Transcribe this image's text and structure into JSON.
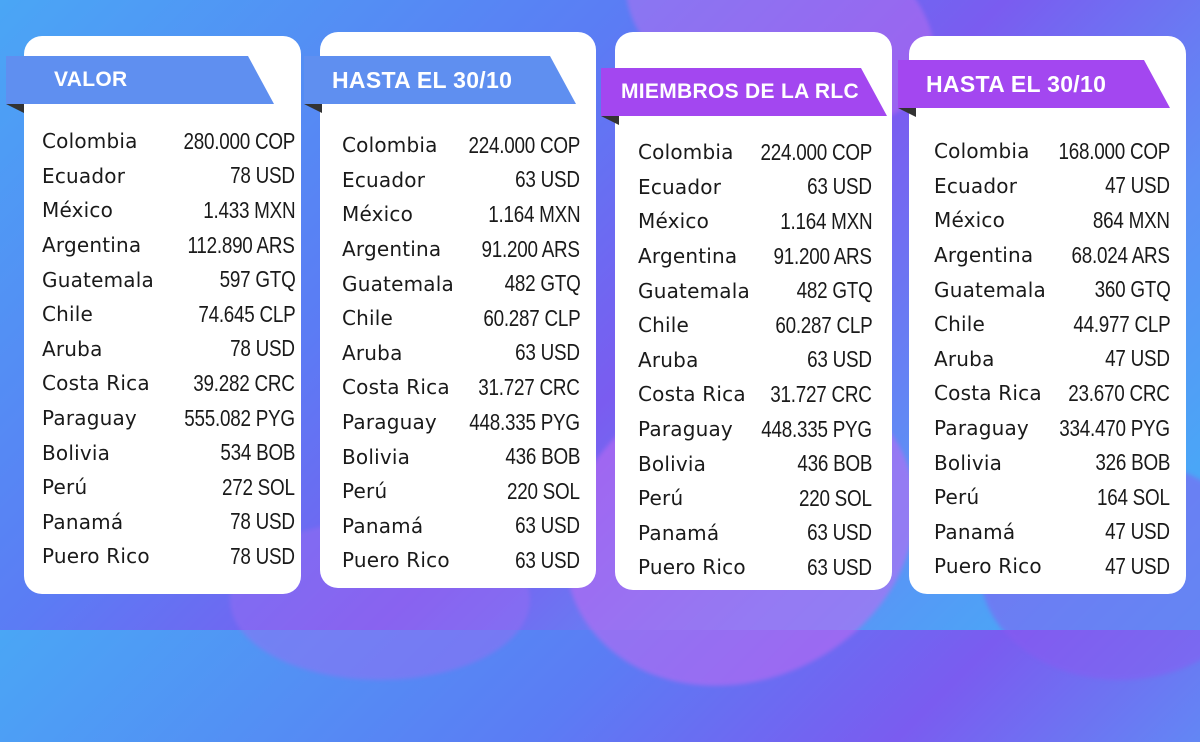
{
  "cards": [
    {
      "header": "VALOR",
      "header_color": "#5f8ff0",
      "rows": [
        {
          "country": "Colombia",
          "price": "280.000 COP"
        },
        {
          "country": "Ecuador",
          "price": "78 USD"
        },
        {
          "country": "México",
          "price": "1.433 MXN"
        },
        {
          "country": "Argentina",
          "price": "112.890 ARS"
        },
        {
          "country": "Guatemala",
          "price": "597 GTQ"
        },
        {
          "country": "Chile",
          "price": "74.645 CLP"
        },
        {
          "country": "Aruba",
          "price": "78 USD"
        },
        {
          "country": "Costa Rica",
          "price": "39.282 CRC"
        },
        {
          "country": "Paraguay",
          "price": "555.082 PYG"
        },
        {
          "country": "Bolivia",
          "price": "534 BOB"
        },
        {
          "country": "Perú",
          "price": "272 SOL"
        },
        {
          "country": "Panamá",
          "price": "78 USD"
        },
        {
          "country": "Puero Rico",
          "price": "78 USD"
        }
      ]
    },
    {
      "header": "HASTA EL 30/10",
      "header_color": "#5f8ff0",
      "rows": [
        {
          "country": "Colombia",
          "price": "224.000 COP"
        },
        {
          "country": "Ecuador",
          "price": "63 USD"
        },
        {
          "country": "México",
          "price": "1.164 MXN"
        },
        {
          "country": "Argentina",
          "price": "91.200 ARS"
        },
        {
          "country": "Guatemala",
          "price": "482 GTQ"
        },
        {
          "country": "Chile",
          "price": "60.287 CLP"
        },
        {
          "country": "Aruba",
          "price": "63 USD"
        },
        {
          "country": "Costa Rica",
          "price": "31.727 CRC"
        },
        {
          "country": "Paraguay",
          "price": "448.335 PYG"
        },
        {
          "country": "Bolivia",
          "price": "436 BOB"
        },
        {
          "country": "Perú",
          "price": "220 SOL"
        },
        {
          "country": "Panamá",
          "price": "63 USD"
        },
        {
          "country": "Puero Rico",
          "price": "63 USD"
        }
      ]
    },
    {
      "header": "MIEMBROS DE LA RLC",
      "header_color": "#a347f0",
      "rows": [
        {
          "country": "Colombia",
          "price": "224.000 COP"
        },
        {
          "country": "Ecuador",
          "price": "63 USD"
        },
        {
          "country": "México",
          "price": "1.164 MXN"
        },
        {
          "country": "Argentina",
          "price": "91.200 ARS"
        },
        {
          "country": "Guatemala",
          "price": "482 GTQ"
        },
        {
          "country": "Chile",
          "price": "60.287 CLP"
        },
        {
          "country": "Aruba",
          "price": "63 USD"
        },
        {
          "country": "Costa Rica",
          "price": "31.727 CRC"
        },
        {
          "country": "Paraguay",
          "price": "448.335 PYG"
        },
        {
          "country": "Bolivia",
          "price": "436 BOB"
        },
        {
          "country": "Perú",
          "price": "220 SOL"
        },
        {
          "country": "Panamá",
          "price": "63 USD"
        },
        {
          "country": "Puero Rico",
          "price": "63 USD"
        }
      ]
    },
    {
      "header": "HASTA EL 30/10",
      "header_color": "#a347f0",
      "rows": [
        {
          "country": "Colombia",
          "price": "168.000 COP"
        },
        {
          "country": "Ecuador",
          "price": "47 USD"
        },
        {
          "country": "México",
          "price": "864 MXN"
        },
        {
          "country": "Argentina",
          "price": "68.024 ARS"
        },
        {
          "country": "Guatemala",
          "price": "360 GTQ"
        },
        {
          "country": "Chile",
          "price": "44.977 CLP"
        },
        {
          "country": "Aruba",
          "price": "47 USD"
        },
        {
          "country": "Costa Rica",
          "price": "23.670 CRC"
        },
        {
          "country": "Paraguay",
          "price": "334.470 PYG"
        },
        {
          "country": "Bolivia",
          "price": "326 BOB"
        },
        {
          "country": "Perú",
          "price": "164 SOL"
        },
        {
          "country": "Panamá",
          "price": "47 USD"
        },
        {
          "country": "Puero Rico",
          "price": "47 USD"
        }
      ]
    }
  ]
}
